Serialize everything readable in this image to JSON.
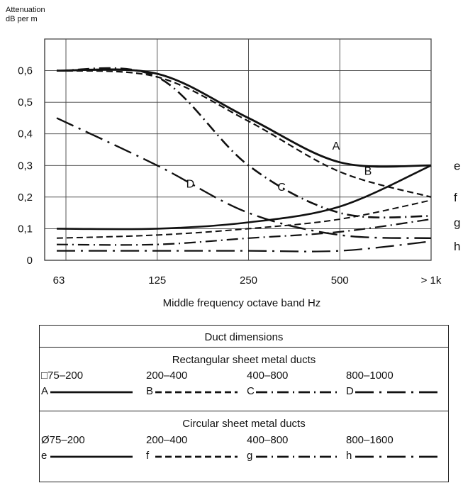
{
  "chart_data": {
    "type": "line",
    "ylabel": "Attenuation\ndB per m",
    "xlabel": "Middle frequency octave band Hz",
    "x_ticks": [
      "63",
      "125",
      "250",
      "500",
      "> 1k"
    ],
    "y_ticks": [
      "0",
      "0,1",
      "0,2",
      "0,3",
      "0,4",
      "0,5",
      "0,6"
    ],
    "ylim": [
      0,
      0.7
    ],
    "grid": true,
    "series": [
      {
        "name": "A",
        "style": "solid",
        "width": 2.8,
        "x": [
          "63",
          "125",
          "250",
          "500",
          "> 1k"
        ],
        "values": [
          0.6,
          0.59,
          0.45,
          0.31,
          0.3
        ]
      },
      {
        "name": "B",
        "style": "dashed",
        "width": 2.2,
        "x": [
          "63",
          "125",
          "250",
          "500",
          "> 1k"
        ],
        "values": [
          0.6,
          0.58,
          0.44,
          0.28,
          0.2
        ]
      },
      {
        "name": "C",
        "style": "dashdot",
        "width": 2.6,
        "x": [
          "63",
          "125",
          "250",
          "500",
          "> 1k"
        ],
        "values": [
          0.6,
          0.58,
          0.3,
          0.15,
          0.14
        ]
      },
      {
        "name": "D",
        "style": "dashdot2",
        "width": 2.4,
        "x": [
          "63",
          "125",
          "250",
          "500",
          "> 1k"
        ],
        "values": [
          0.45,
          0.3,
          0.15,
          0.08,
          0.07
        ]
      },
      {
        "name": "e",
        "style": "solid",
        "width": 2.6,
        "x": [
          "63",
          "125",
          "250",
          "500",
          "> 1k"
        ],
        "values": [
          0.1,
          0.1,
          0.12,
          0.17,
          0.3
        ]
      },
      {
        "name": "f",
        "style": "dashed",
        "width": 2.0,
        "x": [
          "63",
          "125",
          "250",
          "500",
          "> 1k"
        ],
        "values": [
          0.07,
          0.08,
          0.1,
          0.13,
          0.19
        ]
      },
      {
        "name": "g",
        "style": "dashdot",
        "width": 2.2,
        "x": [
          "63",
          "125",
          "250",
          "500",
          "> 1k"
        ],
        "values": [
          0.05,
          0.05,
          0.07,
          0.09,
          0.13
        ]
      },
      {
        "name": "h",
        "style": "dashdot2",
        "width": 2.2,
        "x": [
          "63",
          "125",
          "250",
          "500",
          "> 1k"
        ],
        "values": [
          0.03,
          0.03,
          0.03,
          0.03,
          0.06
        ]
      }
    ],
    "curve_labels": [
      "A",
      "B",
      "C",
      "D"
    ],
    "side_labels": [
      "e",
      "f",
      "g",
      "h"
    ]
  },
  "legend": {
    "title": "Duct dimensions",
    "rect_title": "Rectangular sheet metal ducts",
    "rect_sizes": [
      "□75–200",
      "200–400",
      "400–800",
      "800–1000"
    ],
    "rect_letters": [
      "A",
      "B",
      "C",
      "D"
    ],
    "circ_title": "Circular sheet metal ducts",
    "circ_sizes": [
      "Ø75–200",
      "200–400",
      "400–800",
      "800–1600"
    ],
    "circ_letters": [
      "e",
      "f",
      "g",
      "h"
    ]
  }
}
